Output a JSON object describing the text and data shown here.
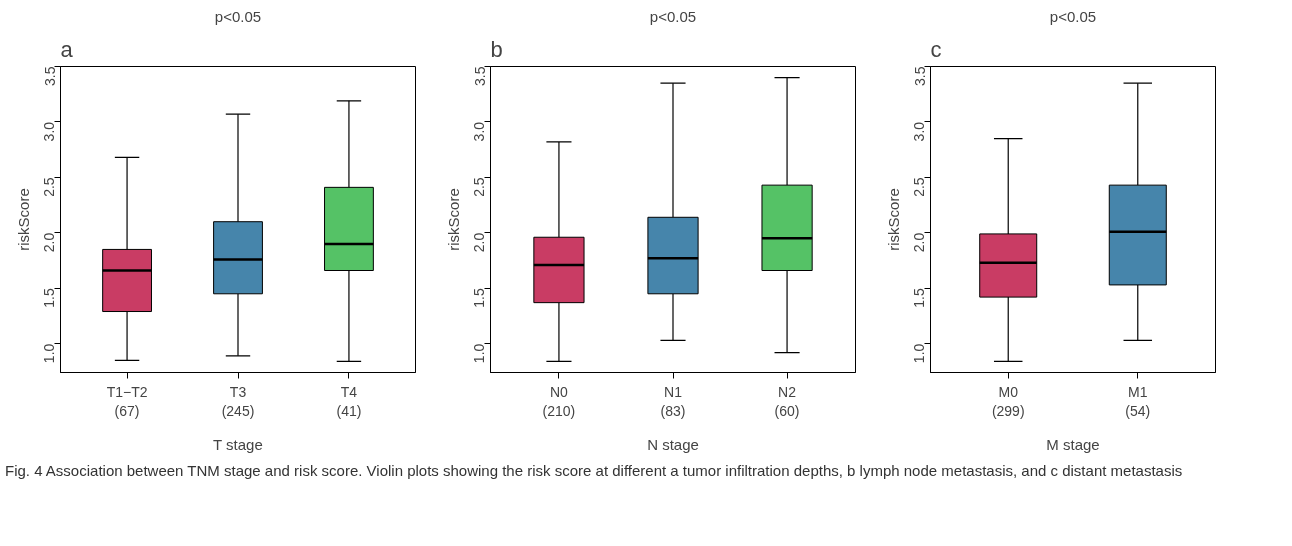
{
  "chart_data": [
    {
      "type": "box",
      "title": "p<0.05",
      "xlabel": "T stage",
      "ylabel": "riskScore",
      "annotations": [
        "a"
      ],
      "categories": [
        "T1−T2\n(67)",
        "T3\n(245)",
        "T4\n(41)"
      ],
      "colors": [
        "#c93c64",
        "#4685ab",
        "#55c266"
      ],
      "ylim": [
        0.74,
        3.5
      ],
      "yticks": [
        {
          "value": 1,
          "label": "1.0"
        },
        1.5,
        {
          "value": 2,
          "label": "2.0"
        },
        2.5,
        {
          "value": 3,
          "label": "3.0"
        },
        3.5
      ],
      "grid": false,
      "boxes": [
        {
          "low": 0.85,
          "q1": 1.29,
          "median": 1.66,
          "q3": 1.85,
          "high": 2.68
        },
        {
          "low": 0.89,
          "q1": 1.45,
          "median": 1.76,
          "q3": 2.1,
          "high": 3.07
        },
        {
          "low": 0.84,
          "q1": 1.66,
          "median": 1.9,
          "q3": 2.41,
          "high": 3.19
        }
      ]
    },
    {
      "type": "box",
      "title": "p<0.05",
      "xlabel": "N stage",
      "ylabel": "riskScore",
      "annotations": [
        "b"
      ],
      "categories": [
        "N0\n(210)",
        "N1\n(83)",
        "N2\n(60)"
      ],
      "colors": [
        "#c93c64",
        "#4685ab",
        "#55c266"
      ],
      "ylim": [
        0.74,
        3.5
      ],
      "yticks": [
        {
          "value": 1,
          "label": "1.0"
        },
        1.5,
        {
          "value": 2,
          "label": "2.0"
        },
        2.5,
        {
          "value": 3,
          "label": "3.0"
        },
        3.5
      ],
      "grid": false,
      "boxes": [
        {
          "low": 0.84,
          "q1": 1.37,
          "median": 1.71,
          "q3": 1.96,
          "high": 2.82
        },
        {
          "low": 1.03,
          "q1": 1.45,
          "median": 1.77,
          "q3": 2.14,
          "high": 3.35
        },
        {
          "low": 0.92,
          "q1": 1.66,
          "median": 1.95,
          "q3": 2.43,
          "high": 3.4
        }
      ]
    },
    {
      "type": "box",
      "title": "p<0.05",
      "xlabel": "M stage",
      "ylabel": "riskScore",
      "annotations": [
        "c"
      ],
      "categories": [
        "M0\n(299)",
        "M1\n(54)"
      ],
      "colors": [
        "#c93c64",
        "#4685ab"
      ],
      "ylim": [
        0.74,
        3.5
      ],
      "yticks": [
        {
          "value": 1,
          "label": "1.0"
        },
        1.5,
        {
          "value": 2,
          "label": "2.0"
        },
        2.5,
        {
          "value": 3,
          "label": "3.0"
        },
        3.5
      ],
      "grid": false,
      "boxes": [
        {
          "low": 0.84,
          "q1": 1.42,
          "median": 1.73,
          "q3": 1.99,
          "high": 2.85
        },
        {
          "low": 1.03,
          "q1": 1.53,
          "median": 2.01,
          "q3": 2.43,
          "high": 3.35
        }
      ]
    },
    {
      "type": "other",
      "annotations": [
        "Fig. 4 Association between TNM stage and risk score. Violin plots showing the risk score at different a tumor infiltration depths, b lymph node metastasis, and c distant metastasis"
      ]
    }
  ]
}
